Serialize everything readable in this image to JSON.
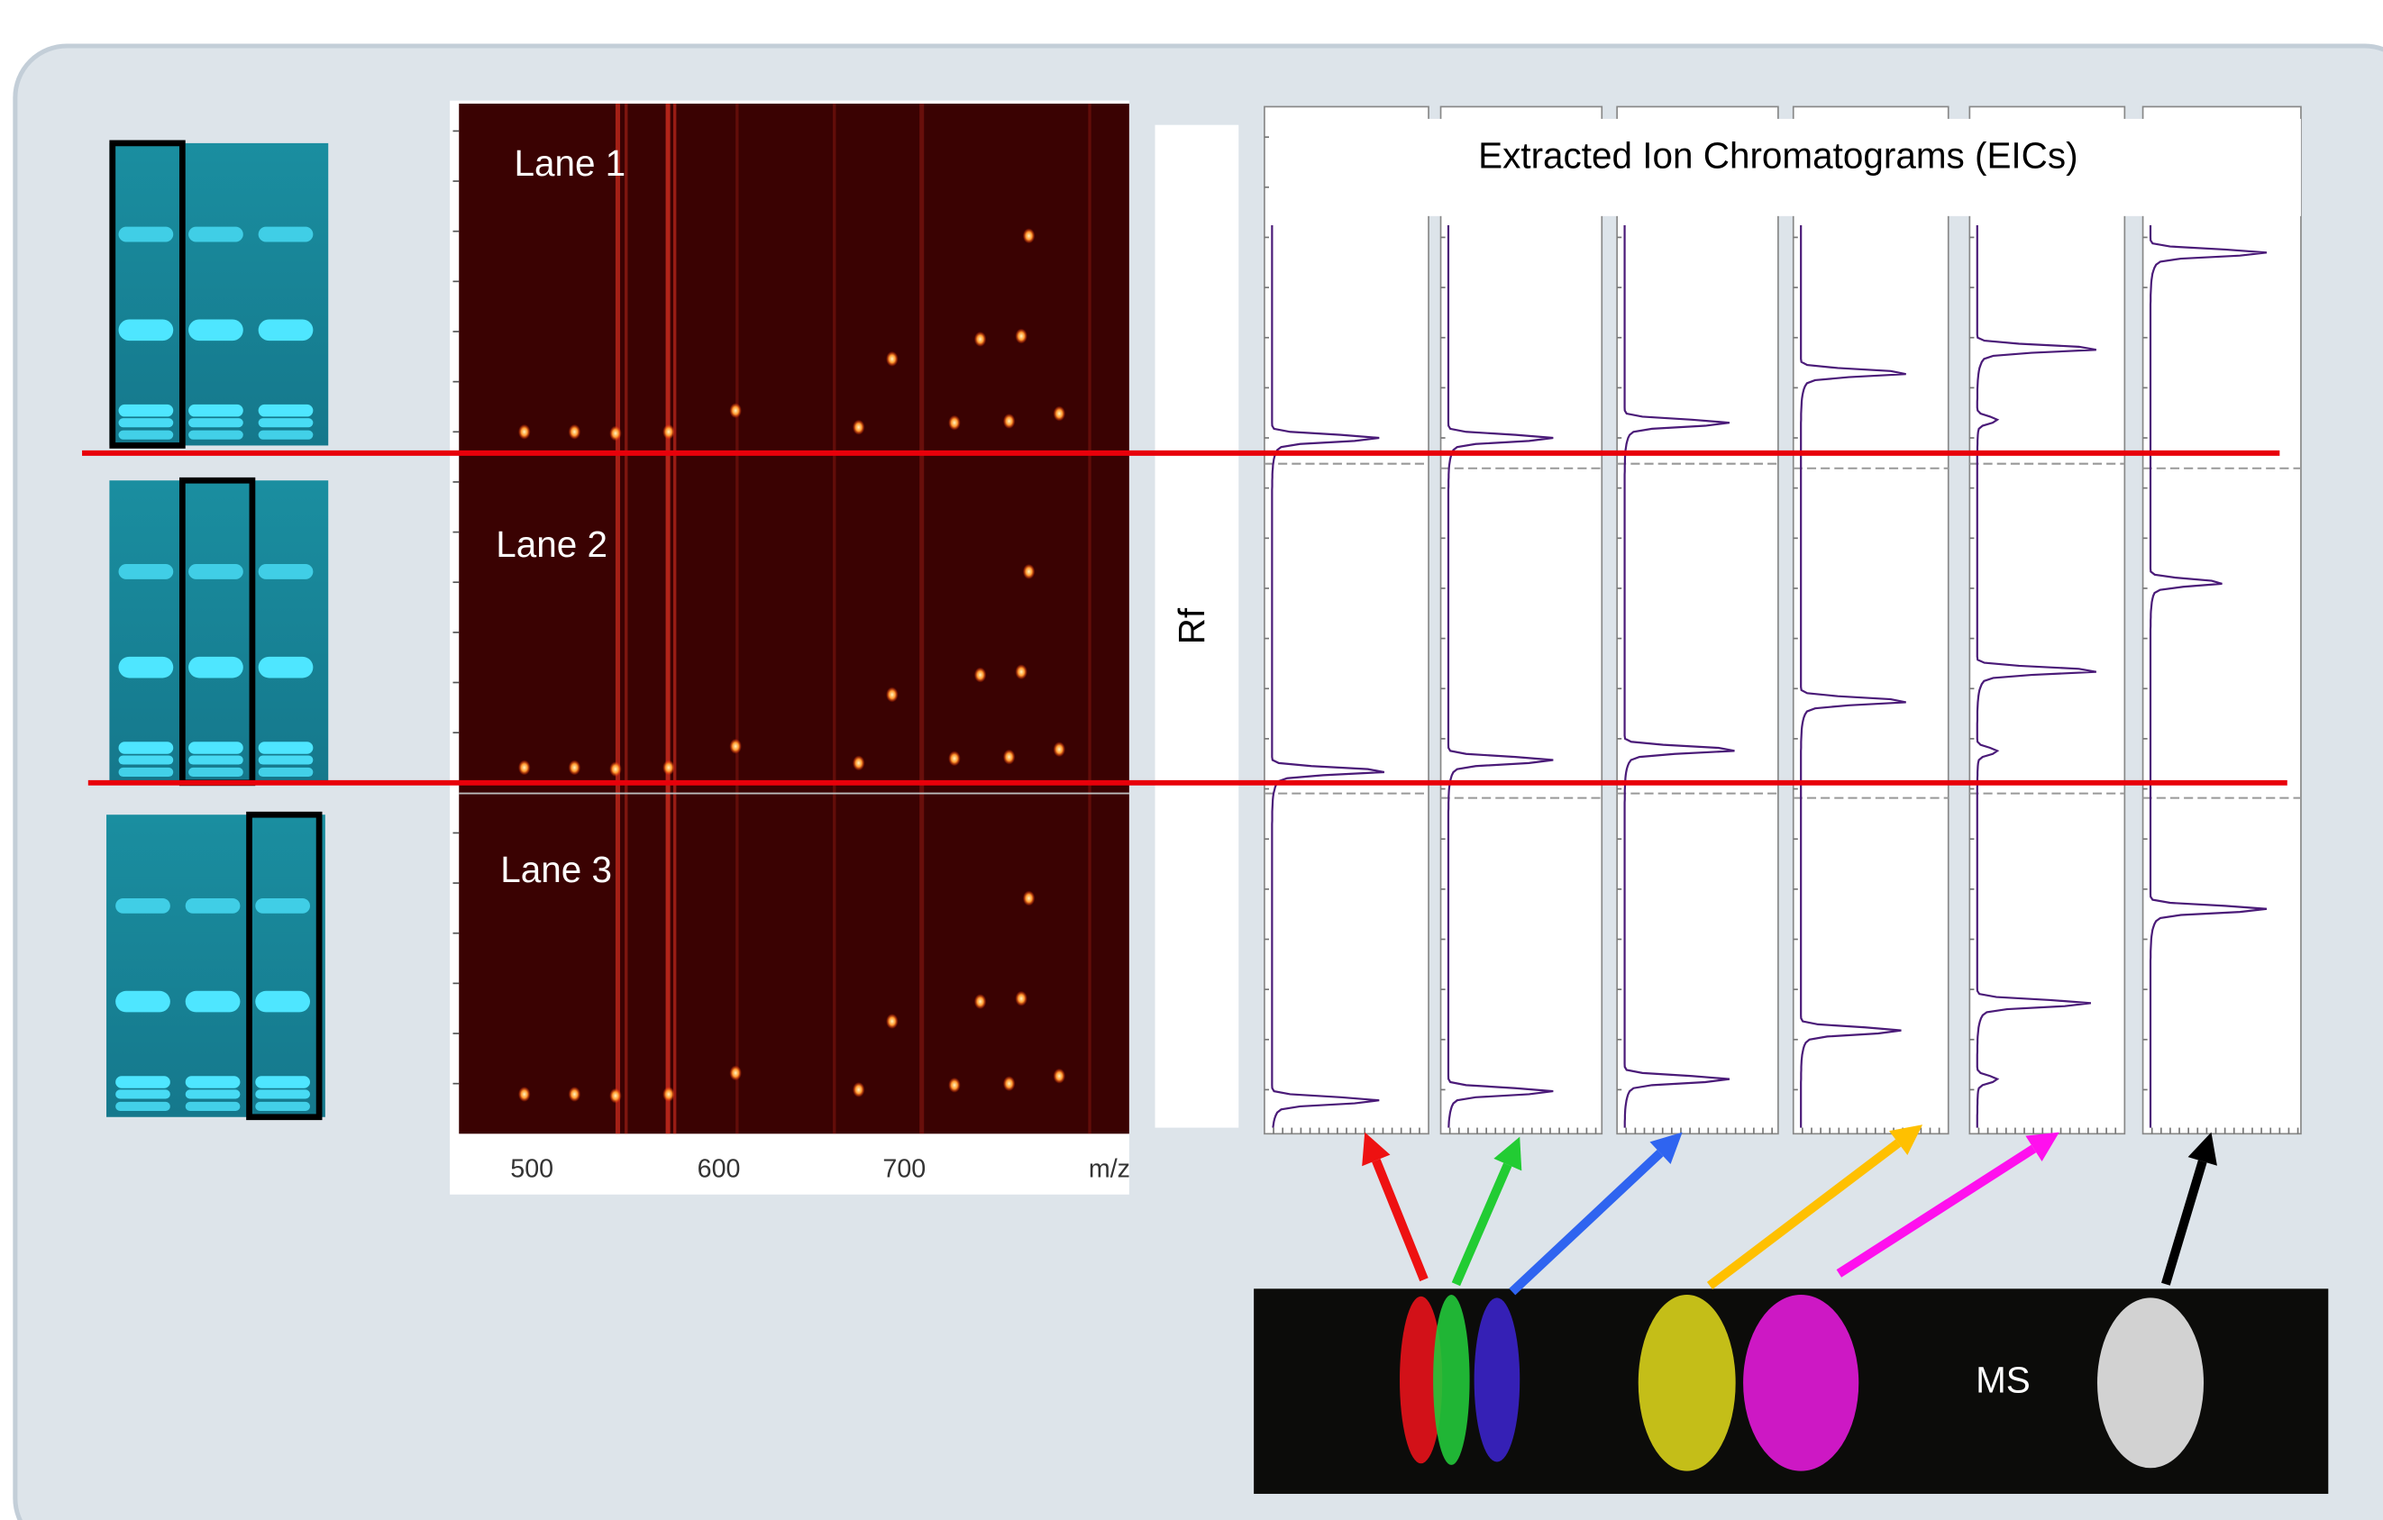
{
  "lanes": [
    "Lane 1",
    "Lane 2",
    "Lane 3"
  ],
  "mz_axis": {
    "ticks": [
      "500",
      "600",
      "700"
    ],
    "label": "m/z"
  },
  "rf_label": "Rf",
  "eic_title": "Extracted Ion Chromatograms (EICs)",
  "ms_label": "MS"
}
